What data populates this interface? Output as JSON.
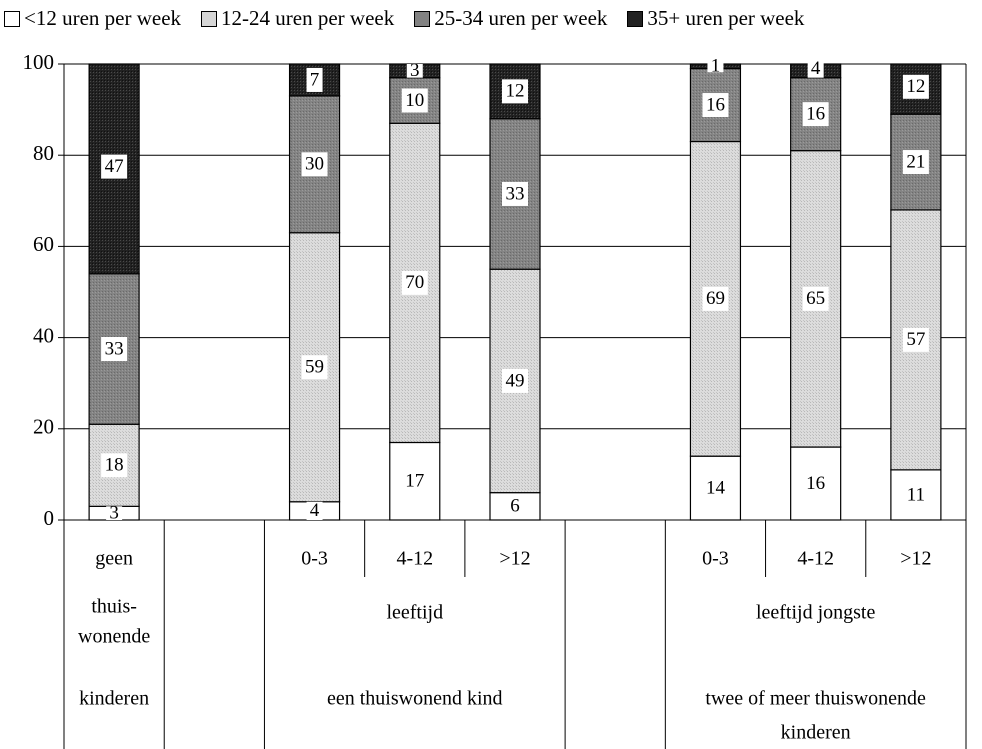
{
  "chart_data": {
    "type": "bar",
    "stacked": true,
    "ylim": [
      0,
      100
    ],
    "yticks": [
      0,
      20,
      40,
      60,
      80,
      100
    ],
    "grid": true,
    "legend_position": "top",
    "series": [
      {
        "name": "<12 uren per week",
        "color": "#ffffff"
      },
      {
        "name": "12-24 uren per week",
        "color": "#d4d4d4"
      },
      {
        "name": "25-34 uren per week",
        "color": "#808080"
      },
      {
        "name": "35+ uren per week",
        "color": "#1e1e1e"
      }
    ],
    "columns": [
      {
        "label": "geen",
        "values": [
          3,
          18,
          33,
          47
        ]
      },
      {
        "label": "",
        "values": null
      },
      {
        "label": "0-3",
        "values": [
          4,
          59,
          30,
          7
        ]
      },
      {
        "label": "4-12",
        "values": [
          17,
          70,
          10,
          3
        ]
      },
      {
        "label": ">12",
        "values": [
          6,
          49,
          33,
          12
        ]
      },
      {
        "label": "",
        "values": null
      },
      {
        "label": "0-3",
        "values": [
          14,
          69,
          16,
          1
        ]
      },
      {
        "label": "4-12",
        "values": [
          16,
          65,
          16,
          4
        ]
      },
      {
        "label": ">12",
        "values": [
          11,
          57,
          21,
          12
        ]
      }
    ],
    "group_labels": {
      "g1_row2": "thuis-\nwonende",
      "g1_row3": "kinderen",
      "g2_row2": "leeftijd",
      "g2_row3": "een thuiswonend kind",
      "g3_row2": "leeftijd jongste",
      "g3_row3": "twee of meer thuiswonende\nkinderen"
    }
  }
}
